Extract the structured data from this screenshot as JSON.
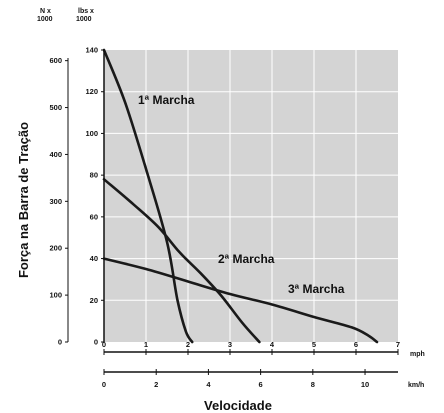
{
  "chart_data": {
    "type": "line",
    "title": "",
    "ylabel": "Força na Barra de Tração",
    "xlabel": "Velocidade",
    "y_unit_left": "N x\n1000",
    "y_unit_right": "lbs x\n1000",
    "x_unit_top": "mph",
    "x_unit_bottom": "km/h",
    "xlim_mph": [
      0,
      7
    ],
    "ylim_lbs": [
      0,
      140
    ],
    "grid": true,
    "background": "#d4d4d4",
    "line_color": "#1a1a1a",
    "x_ticks_mph": [
      "0",
      "1",
      "2",
      "3",
      "4",
      "5",
      "6",
      "7"
    ],
    "x_ticks_kmh": [
      "0",
      "2",
      "4",
      "6",
      "8",
      "10"
    ],
    "y_ticks_lbs": [
      "0",
      "20",
      "40",
      "60",
      "80",
      "100",
      "120",
      "140"
    ],
    "y_ticks_N": [
      "0",
      "100",
      "200",
      "300",
      "400",
      "500",
      "600"
    ],
    "series": [
      {
        "name": "1ª Marcha",
        "x": [
          0,
          0.5,
          1.0,
          1.5,
          1.75,
          1.95,
          2.1
        ],
        "y": [
          140,
          115,
          83,
          48,
          20,
          5,
          0
        ]
      },
      {
        "name": "2ª Marcha",
        "x": [
          0,
          0.7,
          1.3,
          1.8,
          2.3,
          2.8,
          3.3,
          3.7
        ],
        "y": [
          78,
          66,
          55,
          43,
          33,
          22,
          9,
          0
        ]
      },
      {
        "name": "3ª Marcha",
        "x": [
          0,
          1.0,
          2.0,
          3.0,
          4.0,
          5.0,
          5.9,
          6.3,
          6.5
        ],
        "y": [
          40,
          35,
          29,
          23,
          18,
          12,
          7,
          3,
          0
        ]
      }
    ],
    "annotations": [
      "1ª Marcha",
      "2ª Marcha",
      "3ª Marcha"
    ]
  }
}
